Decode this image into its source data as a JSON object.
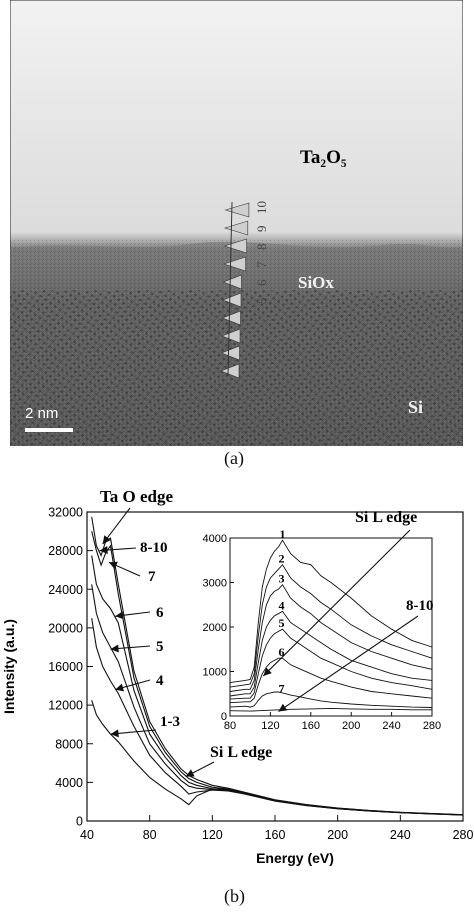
{
  "panel_a": {
    "caption": "(a)",
    "labels": {
      "ta2o5": "Ta₂O₅",
      "siox": "SiOx",
      "si": "Si",
      "scale": "2 nm"
    },
    "marker_numbers": [
      "5",
      "6",
      "7",
      "8",
      "9",
      "10"
    ]
  },
  "panel_b": {
    "caption": "(b)"
  },
  "chart_data": {
    "type": "line",
    "xlabel": "Energy (eV)",
    "ylabel": "Intensity (a.u.)",
    "xlim": [
      40,
      280
    ],
    "ylim": [
      0,
      32000
    ],
    "xticks": [
      "40",
      "80",
      "120",
      "160",
      "200",
      "240",
      "280"
    ],
    "yticks": [
      "0",
      "4000",
      "8000",
      "12000",
      "16000",
      "20000",
      "24000",
      "28000",
      "32000"
    ],
    "annotations": [
      "Ta O edge",
      "8-10",
      "7",
      "6",
      "5",
      "4",
      "1-3",
      "Si L edge"
    ],
    "series": [
      {
        "name": "8-10",
        "x": [
          43,
          46,
          49,
          52,
          55,
          60,
          70,
          80,
          90,
          100,
          105,
          110,
          120,
          130,
          140,
          160,
          180,
          200,
          220,
          240,
          260,
          280
        ],
        "y": [
          31500,
          28500,
          27500,
          29000,
          29300,
          24500,
          15500,
          10300,
          7500,
          5400,
          4700,
          4300,
          3700,
          3400,
          3000,
          2200,
          1700,
          1350,
          1100,
          900,
          780,
          650
        ]
      },
      {
        "name": "7",
        "x": [
          43,
          46,
          49,
          52,
          55,
          60,
          70,
          80,
          90,
          100,
          105,
          110,
          120,
          130,
          140,
          160,
          180,
          200,
          220,
          240,
          260,
          280
        ],
        "y": [
          30000,
          28000,
          26500,
          27800,
          28500,
          23500,
          14800,
          9800,
          7100,
          5100,
          4400,
          4000,
          3500,
          3300,
          2950,
          2150,
          1680,
          1330,
          1080,
          890,
          770,
          640
        ]
      },
      {
        "name": "6",
        "x": [
          43,
          46,
          50,
          55,
          60,
          70,
          80,
          90,
          100,
          105,
          110,
          120,
          130,
          140,
          160,
          180,
          200,
          220,
          240,
          260,
          280
        ],
        "y": [
          27500,
          24500,
          23000,
          22000,
          20500,
          13500,
          9000,
          6600,
          4700,
          4000,
          3700,
          3350,
          3200,
          2900,
          2100,
          1650,
          1300,
          1060,
          880,
          760,
          630
        ]
      },
      {
        "name": "5",
        "x": [
          43,
          46,
          50,
          55,
          60,
          70,
          80,
          90,
          100,
          105,
          110,
          120,
          130,
          140,
          160,
          180,
          200,
          220,
          240,
          260,
          280
        ],
        "y": [
          24500,
          21500,
          19500,
          18000,
          16500,
          11800,
          8000,
          5900,
          4200,
          3600,
          3400,
          3250,
          3150,
          2850,
          2080,
          1620,
          1280,
          1050,
          870,
          750,
          620
        ]
      },
      {
        "name": "4",
        "x": [
          43,
          46,
          50,
          55,
          60,
          70,
          80,
          90,
          100,
          105,
          110,
          120,
          130,
          140,
          160,
          180,
          200,
          220,
          240,
          260,
          280
        ],
        "y": [
          21000,
          18000,
          16000,
          14500,
          13200,
          9800,
          6800,
          5000,
          3600,
          2800,
          3000,
          3200,
          3120,
          2820,
          2060,
          1600,
          1260,
          1040,
          860,
          740,
          610
        ]
      },
      {
        "name": "1-3",
        "x": [
          43,
          46,
          50,
          55,
          60,
          70,
          80,
          90,
          100,
          105,
          110,
          120,
          130,
          140,
          160,
          180,
          200,
          220,
          240,
          260,
          280
        ],
        "y": [
          12500,
          11000,
          10000,
          9000,
          8200,
          6200,
          4500,
          3300,
          2300,
          1700,
          2600,
          3300,
          3300,
          2900,
          2100,
          1620,
          1280,
          1050,
          870,
          750,
          620
        ]
      }
    ],
    "inset": {
      "type": "line",
      "xlim": [
        80,
        280
      ],
      "ylim": [
        0,
        4000
      ],
      "xticks": [
        "80",
        "120",
        "160",
        "200",
        "240",
        "280"
      ],
      "yticks": [
        "0",
        "1000",
        "2000",
        "3000",
        "4000"
      ],
      "annotations": [
        "Si L edge",
        "8-10"
      ],
      "series": [
        {
          "name": "1",
          "x": [
            80,
            95,
            100,
            104,
            108,
            112,
            116,
            120,
            124,
            128,
            132,
            140,
            150,
            160,
            170,
            180,
            200,
            220,
            240,
            260,
            280
          ],
          "y": [
            750,
            800,
            820,
            1100,
            2100,
            2900,
            3300,
            3550,
            3700,
            3800,
            3950,
            3650,
            3450,
            3400,
            3150,
            3000,
            2650,
            2250,
            1950,
            1700,
            1550
          ]
        },
        {
          "name": "2",
          "x": [
            80,
            95,
            100,
            104,
            108,
            112,
            116,
            120,
            124,
            128,
            132,
            140,
            150,
            160,
            170,
            180,
            200,
            220,
            240,
            260,
            280
          ],
          "y": [
            650,
            700,
            720,
            950,
            1800,
            2500,
            2900,
            3100,
            3200,
            3300,
            3400,
            3100,
            2900,
            2750,
            2550,
            2400,
            2050,
            1800,
            1600,
            1450,
            1300
          ]
        },
        {
          "name": "3",
          "x": [
            80,
            95,
            100,
            104,
            108,
            112,
            116,
            120,
            124,
            128,
            132,
            140,
            150,
            160,
            170,
            180,
            200,
            220,
            240,
            260,
            280
          ],
          "y": [
            550,
            600,
            600,
            800,
            1500,
            2100,
            2500,
            2700,
            2800,
            2850,
            2950,
            2650,
            2450,
            2300,
            2100,
            1950,
            1650,
            1450,
            1300,
            1150,
            1050
          ]
        },
        {
          "name": "4",
          "x": [
            80,
            95,
            100,
            104,
            108,
            112,
            116,
            120,
            124,
            128,
            132,
            140,
            150,
            160,
            170,
            180,
            200,
            220,
            240,
            260,
            280
          ],
          "y": [
            450,
            500,
            500,
            650,
            1200,
            1700,
            2000,
            2150,
            2250,
            2300,
            2350,
            2100,
            1950,
            1800,
            1650,
            1500,
            1250,
            1100,
            950,
            850,
            800
          ]
        },
        {
          "name": "5",
          "x": [
            80,
            95,
            100,
            104,
            108,
            112,
            116,
            120,
            124,
            128,
            132,
            140,
            150,
            160,
            170,
            180,
            200,
            220,
            240,
            260,
            280
          ],
          "y": [
            380,
            400,
            400,
            520,
            950,
            1350,
            1600,
            1750,
            1850,
            1900,
            1950,
            1750,
            1600,
            1450,
            1300,
            1200,
            1000,
            850,
            750,
            680,
            600
          ]
        },
        {
          "name": "6",
          "x": [
            80,
            95,
            100,
            104,
            108,
            112,
            116,
            120,
            124,
            128,
            132,
            140,
            150,
            160,
            170,
            180,
            200,
            220,
            240,
            260,
            280
          ],
          "y": [
            300,
            320,
            320,
            400,
            700,
            950,
            1100,
            1200,
            1250,
            1300,
            1300,
            1150,
            1050,
            950,
            850,
            780,
            650,
            550,
            500,
            450,
            400
          ]
        },
        {
          "name": "7",
          "x": [
            80,
            95,
            100,
            104,
            108,
            112,
            116,
            120,
            124,
            128,
            132,
            140,
            150,
            160,
            170,
            180,
            200,
            220,
            240,
            260,
            280
          ],
          "y": [
            200,
            220,
            200,
            230,
            350,
            450,
            500,
            520,
            540,
            540,
            520,
            470,
            430,
            380,
            340,
            310,
            270,
            240,
            220,
            200,
            190
          ]
        },
        {
          "name": "8-10",
          "x": [
            80,
            100,
            120,
            140,
            160,
            180,
            200,
            220,
            240,
            260,
            280
          ],
          "y": [
            120,
            110,
            130,
            150,
            160,
            170,
            160,
            150,
            150,
            140,
            140
          ]
        }
      ]
    }
  }
}
